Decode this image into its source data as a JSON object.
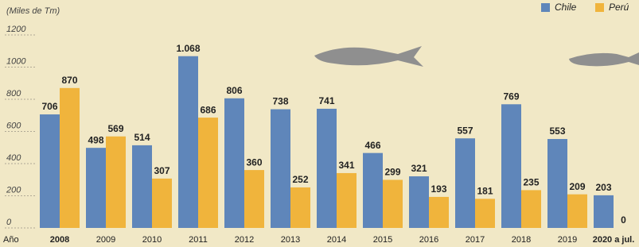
{
  "chart_data": {
    "type": "bar",
    "unit_label": "(Miles de Tm)",
    "x_label": "Año",
    "categories": [
      "2008",
      "2009",
      "2010",
      "2011",
      "2012",
      "2013",
      "2014",
      "2015",
      "2016",
      "2017",
      "2018",
      "2019",
      "2020 a jul."
    ],
    "series": [
      {
        "name": "Chile",
        "color": "#5f86ba",
        "values": [
          706,
          498,
          514,
          1068,
          806,
          738,
          741,
          466,
          321,
          557,
          769,
          553,
          203
        ],
        "value_labels": [
          "706",
          "498",
          "514",
          "1.068",
          "806",
          "738",
          "741",
          "466",
          "321",
          "557",
          "769",
          "553",
          "203"
        ]
      },
      {
        "name": "Perú",
        "color": "#f0b43c",
        "values": [
          870,
          569,
          307,
          686,
          360,
          252,
          341,
          299,
          193,
          181,
          235,
          209,
          0
        ]
      }
    ],
    "ylim": [
      0,
      1200
    ],
    "yticks": [
      0,
      200,
      400,
      600,
      800,
      1000,
      1200
    ],
    "grid": true
  }
}
